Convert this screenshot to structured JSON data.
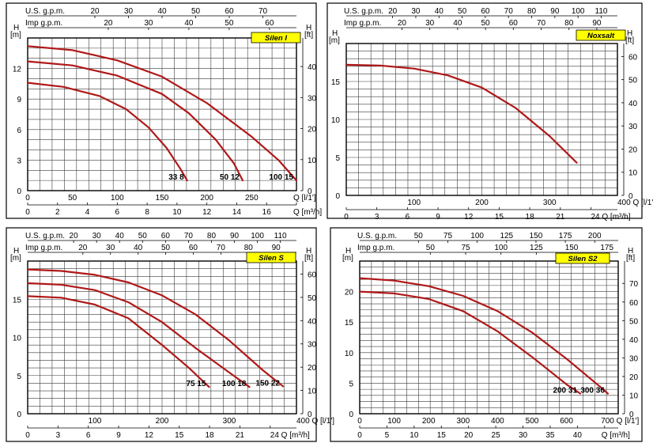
{
  "colors": {
    "curve": "#b01818",
    "grid": "#3a3a3a",
    "frame": "#000000",
    "label_bg": "#ffff00",
    "text": "#000000"
  },
  "chart_data": [
    {
      "type": "line",
      "title": "Silen I",
      "xlabel": "Q [l/1']",
      "x2label": "Q [m³/h]",
      "ylabel": "H [m]",
      "y2label": "H [ft]",
      "top1_label": "U.S. g.p.m.",
      "top2_label": "Imp g.p.m.",
      "xlim": [
        0,
        300
      ],
      "ylim": [
        0,
        15
      ],
      "grid": true,
      "x_ticks": [
        0,
        50,
        100,
        150,
        200,
        250,
        300
      ],
      "x_tick_labels": [
        "0",
        "50",
        "100",
        "150",
        "200",
        "250",
        "Q [l/1']"
      ],
      "x2_ticks": [
        0,
        2,
        4,
        6,
        8,
        10,
        12,
        14,
        16,
        18
      ],
      "x2_tick_labels": [
        "0",
        "2",
        "4",
        "6",
        "8",
        "10",
        "12",
        "14",
        "16",
        "Q [m³/h]"
      ],
      "y_ticks": [
        0,
        3,
        6,
        9,
        12
      ],
      "y_tick_labels": [
        "0",
        "3",
        "6",
        "9",
        "12"
      ],
      "y2_ticks": [
        0,
        10,
        20,
        30,
        40
      ],
      "y2_tick_labels": [
        "0",
        "10",
        "20",
        "30",
        "40"
      ],
      "top1_ticks": [
        20,
        30,
        40,
        50,
        60,
        70
      ],
      "top1_tick_labels": [
        "20",
        "30",
        "40",
        "50",
        "60",
        "70"
      ],
      "top2_ticks": [
        20,
        30,
        40,
        50,
        60
      ],
      "top2_tick_labels": [
        "20",
        "30",
        "40",
        "50",
        "60"
      ],
      "series": [
        {
          "name": "33 8",
          "x": [
            0,
            40,
            80,
            110,
            135,
            155,
            170,
            178
          ],
          "y": [
            10.6,
            10.2,
            9.3,
            8,
            6.2,
            4.2,
            2.2,
            1
          ]
        },
        {
          "name": "50 12",
          "x": [
            0,
            50,
            100,
            150,
            180,
            210,
            230,
            240
          ],
          "y": [
            12.7,
            12.3,
            11.3,
            9.5,
            7.6,
            5,
            2.7,
            1
          ]
        },
        {
          "name": "100 15",
          "x": [
            0,
            50,
            100,
            150,
            200,
            250,
            280,
            300
          ],
          "y": [
            14.2,
            13.8,
            12.8,
            11.2,
            8.6,
            5.3,
            3,
            1
          ]
        }
      ],
      "series_labels": [
        "33 8",
        "50 12",
        "100 15"
      ]
    },
    {
      "type": "line",
      "title": "Noxsalt",
      "xlabel": "Q [l/1']",
      "x2label": "Q [m³/h]",
      "ylabel": "H [m]",
      "y2label": "H [ft]",
      "top1_label": "U.S. g.p.m.",
      "top2_label": "Imp g.p.m.",
      "xlim": [
        0,
        400
      ],
      "ylim": [
        0,
        20
      ],
      "grid": true,
      "x_ticks": [
        100,
        200,
        300,
        400
      ],
      "x_tick_labels": [
        "100",
        "200",
        "300",
        "400 Q [l/1']"
      ],
      "x2_ticks": [
        0,
        3,
        6,
        9,
        12,
        15,
        18,
        21,
        24
      ],
      "x2_tick_labels": [
        "0",
        "3",
        "6",
        "9",
        "12",
        "15",
        "18",
        "21",
        "24 Q [m³/h]"
      ],
      "y_ticks": [
        0,
        5,
        10,
        15
      ],
      "y_tick_labels": [
        "0",
        "5",
        "10",
        "15"
      ],
      "y2_ticks": [
        0,
        10,
        20,
        30,
        40,
        50,
        60
      ],
      "y2_tick_labels": [
        "0",
        "10",
        "20",
        "30",
        "40",
        "50",
        "60"
      ],
      "top1_ticks": [
        20,
        30,
        40,
        50,
        60,
        70,
        80,
        90,
        100,
        110
      ],
      "top1_tick_labels": [
        "20",
        "30",
        "40",
        "50",
        "60",
        "70",
        "80",
        "90",
        "100",
        "110"
      ],
      "top2_ticks": [
        20,
        30,
        40,
        50,
        60,
        70,
        80,
        90
      ],
      "top2_tick_labels": [
        "20",
        "30",
        "40",
        "50",
        "60",
        "70",
        "80",
        "90"
      ],
      "series": [
        {
          "name": "Noxsalt",
          "x": [
            0,
            50,
            100,
            150,
            200,
            250,
            300,
            340
          ],
          "y": [
            17.2,
            17.1,
            16.7,
            15.8,
            14.2,
            11.5,
            7.8,
            4.3
          ]
        }
      ],
      "series_labels": []
    },
    {
      "type": "line",
      "title": "Silen S",
      "xlabel": "Q [l/1']",
      "x2label": "Q [m³/h]",
      "ylabel": "H [m]",
      "y2label": "H [ft]",
      "top1_label": "U.S. g.p.m.",
      "top2_label": "Imp g.p.m.",
      "xlim": [
        0,
        400
      ],
      "ylim": [
        0,
        20
      ],
      "grid": true,
      "x_ticks": [
        100,
        200,
        300,
        400
      ],
      "x_tick_labels": [
        "100",
        "200",
        "300",
        "400 Q [l/1']"
      ],
      "x2_ticks": [
        0,
        3,
        6,
        9,
        12,
        15,
        18,
        21,
        24
      ],
      "x2_tick_labels": [
        "0",
        "3",
        "6",
        "9",
        "12",
        "15",
        "18",
        "21",
        "24 Q [m³/h]"
      ],
      "y_ticks": [
        0,
        5,
        10,
        15
      ],
      "y_tick_labels": [
        "0",
        "5",
        "10",
        "15"
      ],
      "y2_ticks": [
        0,
        10,
        20,
        30,
        40,
        50,
        60
      ],
      "y2_tick_labels": [
        "0",
        "10",
        "20",
        "30",
        "40",
        "50",
        "60"
      ],
      "top1_ticks": [
        20,
        30,
        40,
        50,
        60,
        70,
        80,
        90,
        100,
        110
      ],
      "top1_tick_labels": [
        "20",
        "30",
        "40",
        "50",
        "60",
        "70",
        "80",
        "90",
        "100",
        "110"
      ],
      "top2_ticks": [
        20,
        30,
        40,
        50,
        60,
        70,
        80,
        90
      ],
      "top2_tick_labels": [
        "20",
        "30",
        "40",
        "50",
        "60",
        "70",
        "80",
        "90"
      ],
      "series": [
        {
          "name": "75 15",
          "x": [
            0,
            50,
            100,
            150,
            200,
            240,
            270
          ],
          "y": [
            15.4,
            15.2,
            14.3,
            12.5,
            9,
            6,
            3.5
          ]
        },
        {
          "name": "100 18",
          "x": [
            0,
            50,
            100,
            150,
            200,
            250,
            300,
            330
          ],
          "y": [
            17.1,
            16.9,
            16.2,
            14.6,
            12,
            8.6,
            5.4,
            3.5
          ]
        },
        {
          "name": "150 22",
          "x": [
            0,
            50,
            100,
            150,
            200,
            250,
            300,
            350,
            380
          ],
          "y": [
            18.9,
            18.7,
            18.2,
            17.2,
            15.5,
            13,
            9.6,
            5.7,
            3.6
          ]
        }
      ],
      "series_labels": [
        "75 15",
        "100 18",
        "150 22"
      ]
    },
    {
      "type": "line",
      "title": "Silen S2",
      "xlabel": "Q [l/1']",
      "x2label": "Q [m³/h]",
      "ylabel": "H [m]",
      "y2label": "H [ft]",
      "top1_label": "U.S. g.p.m.",
      "top2_label": "Imp g.p.m.",
      "xlim": [
        0,
        750
      ],
      "ylim": [
        0,
        25
      ],
      "grid": true,
      "x_ticks": [
        0,
        100,
        200,
        300,
        400,
        500,
        600,
        700
      ],
      "x_tick_labels": [
        "0",
        "100",
        "200",
        "300",
        "400",
        "500",
        "600",
        "700 Q [l/1']"
      ],
      "x2_ticks": [
        0,
        5,
        10,
        15,
        20,
        25,
        30,
        35,
        40,
        45
      ],
      "x2_tick_labels": [
        "0",
        "5",
        "10",
        "15",
        "20",
        "25",
        "30",
        "35",
        "40",
        "Q [m³/h]"
      ],
      "y_ticks": [
        0,
        5,
        10,
        15,
        20
      ],
      "y_tick_labels": [
        "0",
        "5",
        "10",
        "15",
        "20"
      ],
      "y2_ticks": [
        0,
        10,
        20,
        30,
        40,
        50,
        60,
        70
      ],
      "y2_tick_labels": [
        "0",
        "10",
        "20",
        "30",
        "40",
        "50",
        "60",
        "70"
      ],
      "top1_ticks": [
        50,
        75,
        100,
        125,
        150,
        175,
        200
      ],
      "top1_tick_labels": [
        "50",
        "75",
        "100",
        "125",
        "150",
        "175",
        "200"
      ],
      "top2_ticks": [
        50,
        75,
        100,
        125,
        150,
        175
      ],
      "top2_tick_labels": [
        "50",
        "75",
        "100",
        "125",
        "150",
        "175"
      ],
      "series": [
        {
          "name": "200 31",
          "x": [
            0,
            100,
            200,
            300,
            400,
            500,
            600,
            640
          ],
          "y": [
            20,
            19.7,
            18.8,
            16.8,
            13.5,
            9.3,
            4.8,
            3.3
          ]
        },
        {
          "name": "300 36",
          "x": [
            0,
            100,
            200,
            300,
            400,
            500,
            600,
            700,
            720
          ],
          "y": [
            22.2,
            21.8,
            20.9,
            19.3,
            16.8,
            13.3,
            9,
            4.3,
            3.3
          ]
        }
      ],
      "series_labels": [
        "200 31",
        "300 36"
      ]
    }
  ]
}
